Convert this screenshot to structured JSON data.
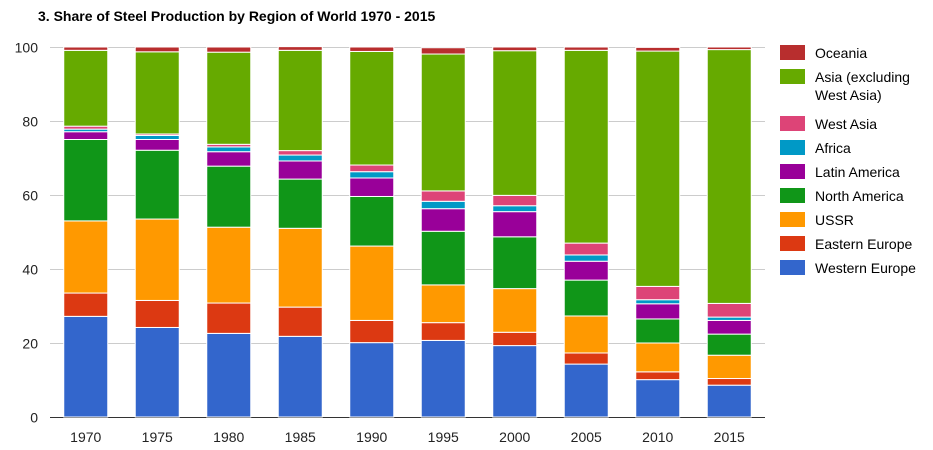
{
  "chart_data": {
    "type": "bar",
    "stacked": true,
    "title": "3. Share of Steel Production by Region of World 1970 - 2015",
    "xlabel": "",
    "ylabel": "",
    "ylim": [
      0,
      100
    ],
    "yticks": [
      0,
      20,
      40,
      60,
      80,
      100
    ],
    "grid": true,
    "legend_position": "right",
    "categories": [
      "1970",
      "1975",
      "1980",
      "1985",
      "1990",
      "1995",
      "2000",
      "2005",
      "2010",
      "2015"
    ],
    "series": [
      {
        "name": "Western Europe",
        "color": "#3366cc",
        "values": [
          27.2,
          24.2,
          22.6,
          21.8,
          20.1,
          20.7,
          19.3,
          14.3,
          10.1,
          8.6
        ]
      },
      {
        "name": "Eastern Europe",
        "color": "#dc3912",
        "values": [
          6.3,
          7.3,
          8.2,
          7.9,
          6.0,
          4.8,
          3.6,
          3.0,
          2.1,
          1.8
        ]
      },
      {
        "name": "USSR",
        "color": "#ff9900",
        "values": [
          19.5,
          22.0,
          20.5,
          21.3,
          20.1,
          10.2,
          11.8,
          10.0,
          7.8,
          6.3
        ]
      },
      {
        "name": "North America",
        "color": "#109618",
        "values": [
          22.0,
          18.6,
          16.5,
          13.3,
          13.4,
          14.5,
          14.0,
          9.7,
          6.5,
          5.7
        ]
      },
      {
        "name": "Latin America",
        "color": "#990099",
        "values": [
          2.1,
          2.9,
          3.9,
          4.9,
          5.0,
          6.1,
          6.8,
          5.1,
          4.1,
          3.7
        ]
      },
      {
        "name": "Africa",
        "color": "#0099c6",
        "values": [
          0.7,
          1.1,
          1.3,
          1.6,
          1.7,
          2.0,
          1.6,
          1.7,
          1.1,
          0.9
        ]
      },
      {
        "name": "West Asia",
        "color": "#dd4477",
        "values": [
          0.8,
          0.4,
          0.7,
          1.2,
          1.8,
          2.8,
          2.8,
          3.2,
          3.6,
          3.7
        ]
      },
      {
        "name": "Asia (excluding West Asia)",
        "color": "#66aa00",
        "values": [
          20.5,
          22.2,
          24.9,
          27.1,
          30.7,
          37.0,
          39.1,
          52.1,
          63.6,
          68.6
        ]
      },
      {
        "name": "Oceania",
        "color": "#b82e2e",
        "values": [
          0.9,
          1.3,
          1.4,
          1.0,
          1.2,
          1.7,
          1.0,
          0.9,
          1.0,
          0.7
        ]
      }
    ]
  }
}
